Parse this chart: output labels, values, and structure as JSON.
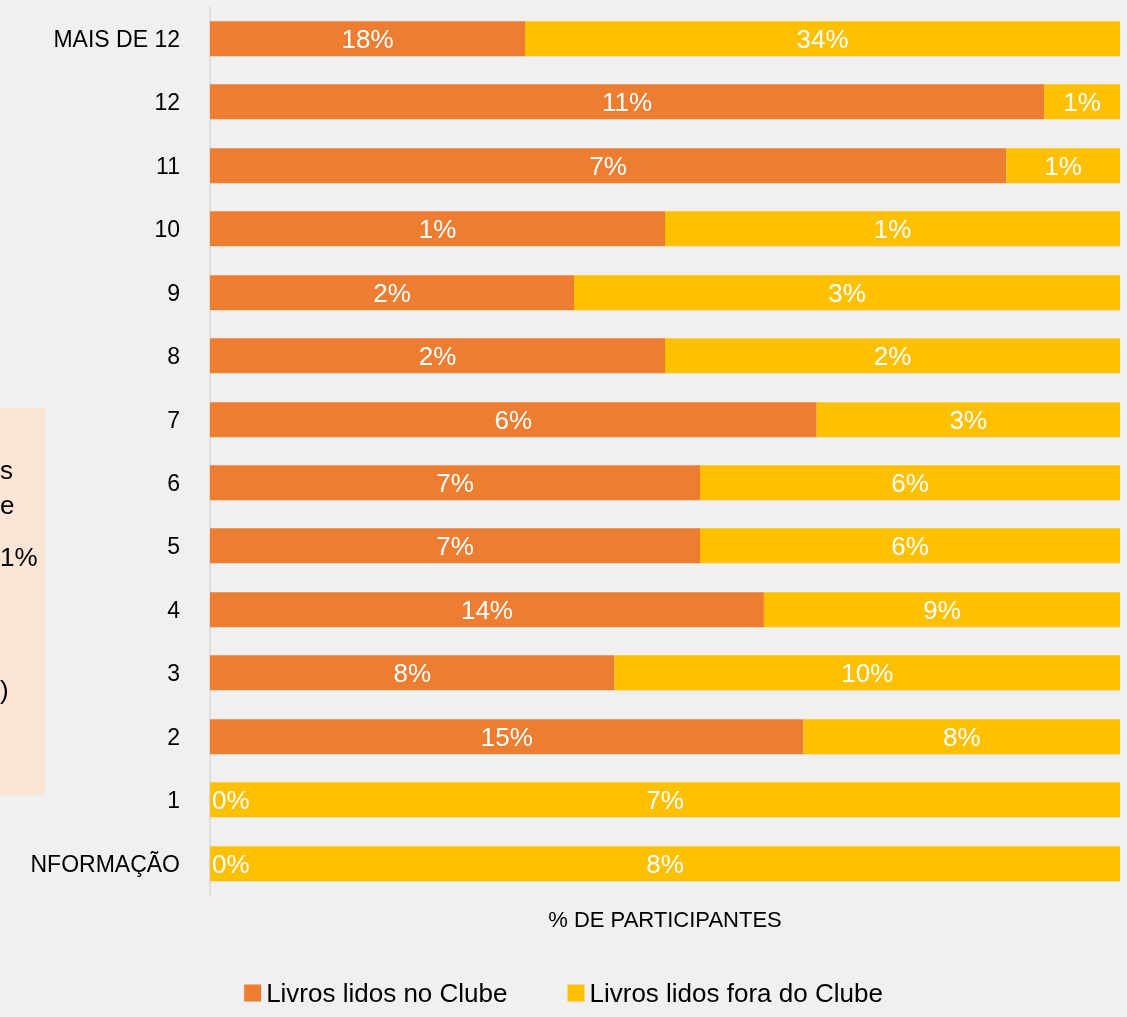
{
  "chart_data": [
    {
      "type": "bar",
      "orientation": "horizontal",
      "stacked": true,
      "categories": [
        "MAIS DE 12"
      ],
      "series": [
        {
          "color": "#ed7d31",
          "values": [
            18
          ],
          "value_labels": [
            "18%"
          ]
        },
        {
          "color": "#ffc000",
          "values": [
            34
          ],
          "value_labels": [
            "34%"
          ]
        }
      ]
    },
    {
      "type": "bar",
      "orientation": "horizontal",
      "stacked": true,
      "categories": [
        "12"
      ],
      "series": [
        {
          "color": "#ed7d31",
          "values": [
            11
          ],
          "value_labels": [
            "11%"
          ]
        },
        {
          "color": "#ffc000",
          "values": [
            1
          ],
          "value_labels": [
            "1%"
          ]
        }
      ]
    },
    {
      "type": "bar",
      "orientation": "horizontal",
      "stacked": true,
      "categories": [
        "11"
      ],
      "series": [
        {
          "color": "#ed7d31",
          "values": [
            7
          ],
          "value_labels": [
            "7%"
          ]
        },
        {
          "color": "#ffc000",
          "values": [
            1
          ],
          "value_labels": [
            "1%"
          ]
        }
      ]
    },
    {
      "type": "bar",
      "orientation": "horizontal",
      "stacked": true,
      "categories": [
        "10"
      ],
      "series": [
        {
          "color": "#ed7d31",
          "values": [
            1
          ],
          "value_labels": [
            "1%"
          ]
        },
        {
          "color": "#ffc000",
          "values": [
            1
          ],
          "value_labels": [
            "1%"
          ]
        }
      ]
    },
    {
      "type": "bar",
      "orientation": "horizontal",
      "stacked": true,
      "categories": [
        "9"
      ],
      "series": [
        {
          "color": "#ed7d31",
          "values": [
            2
          ],
          "value_labels": [
            "2%"
          ]
        },
        {
          "color": "#ffc000",
          "values": [
            3
          ],
          "value_labels": [
            "3%"
          ]
        }
      ]
    },
    {
      "type": "bar",
      "orientation": "horizontal",
      "stacked": true,
      "categories": [
        "8"
      ],
      "series": [
        {
          "color": "#ed7d31",
          "values": [
            2
          ],
          "value_labels": [
            "2%"
          ]
        },
        {
          "color": "#ffc000",
          "values": [
            2
          ],
          "value_labels": [
            "2%"
          ]
        }
      ]
    },
    {
      "type": "bar",
      "orientation": "horizontal",
      "stacked": true,
      "categories": [
        "7"
      ],
      "series": [
        {
          "color": "#ed7d31",
          "values": [
            6
          ],
          "value_labels": [
            "6%"
          ]
        },
        {
          "color": "#ffc000",
          "values": [
            3
          ],
          "value_labels": [
            "3%"
          ]
        }
      ]
    },
    {
      "type": "bar",
      "orientation": "horizontal",
      "stacked": true,
      "categories": [
        "6"
      ],
      "series": [
        {
          "color": "#ed7d31",
          "values": [
            7
          ],
          "value_labels": [
            "7%"
          ]
        },
        {
          "color": "#ffc000",
          "values": [
            6
          ],
          "value_labels": [
            "6%"
          ]
        }
      ]
    },
    {
      "type": "bar",
      "orientation": "horizontal",
      "stacked": true,
      "categories": [
        "5"
      ],
      "series": [
        {
          "color": "#ed7d31",
          "values": [
            7
          ],
          "value_labels": [
            "7%"
          ]
        },
        {
          "color": "#ffc000",
          "values": [
            6
          ],
          "value_labels": [
            "6%"
          ]
        }
      ]
    },
    {
      "type": "bar",
      "orientation": "horizontal",
      "stacked": true,
      "categories": [
        "4"
      ],
      "series": [
        {
          "color": "#ed7d31",
          "values": [
            14
          ],
          "value_labels": [
            "14%"
          ]
        },
        {
          "color": "#ffc000",
          "values": [
            9
          ],
          "value_labels": [
            "9%"
          ]
        }
      ]
    },
    {
      "type": "bar",
      "orientation": "horizontal",
      "stacked": true,
      "categories": [
        "3"
      ],
      "series": [
        {
          "color": "#ed7d31",
          "values": [
            8
          ],
          "value_labels": [
            "8%"
          ]
        },
        {
          "color": "#ffc000",
          "values": [
            10
          ],
          "value_labels": [
            "10%"
          ]
        }
      ]
    },
    {
      "type": "bar",
      "orientation": "horizontal",
      "stacked": true,
      "categories": [
        "2"
      ],
      "series": [
        {
          "color": "#ed7d31",
          "values": [
            15
          ],
          "value_labels": [
            "15%"
          ]
        },
        {
          "color": "#ffc000",
          "values": [
            8
          ],
          "value_labels": [
            "8%"
          ]
        }
      ]
    },
    {
      "type": "bar",
      "orientation": "horizontal",
      "stacked": true,
      "categories": [
        "1"
      ],
      "series": [
        {
          "color": "#ed7d31",
          "values": [
            0
          ],
          "value_labels": [
            "0%"
          ]
        },
        {
          "color": "#ffc000",
          "values": [
            7
          ],
          "value_labels": [
            "7%"
          ]
        }
      ]
    },
    {
      "type": "bar",
      "orientation": "horizontal",
      "stacked": true,
      "categories": [
        "NFORMAÇÃO"
      ],
      "series": [
        {
          "name": "Livros lidos no Clube",
          "color": "#ed7d31",
          "values": [
            0
          ],
          "value_labels": [
            "0%"
          ]
        },
        {
          "name": "Livros lidos fora do Clube",
          "color": "#ffc000",
          "values": [
            8
          ],
          "value_labels": [
            "8%"
          ]
        }
      ],
      "xlabel": "% DE PARTICIPANTES",
      "legend": "bottom"
    },
    {
      "type": "other",
      "annotations": [
        "s",
        "e",
        "1%",
        ")"
      ]
    }
  ]
}
